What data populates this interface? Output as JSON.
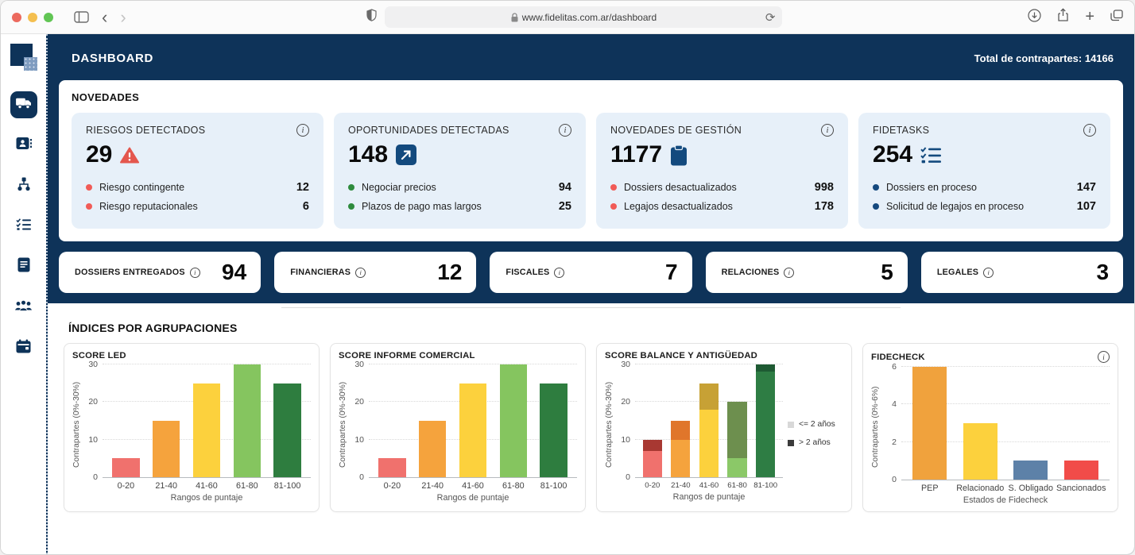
{
  "browser": {
    "url": "www.fidelitas.com.ar/dashboard"
  },
  "header": {
    "title": "DASHBOARD",
    "total_label": "Total de contrapartes: 14166"
  },
  "sidebar": {
    "items": [
      {
        "icon": "truck-icon",
        "active": true
      },
      {
        "icon": "contact-card-icon",
        "active": false
      },
      {
        "icon": "hierarchy-icon",
        "active": false
      },
      {
        "icon": "checklist-icon",
        "active": false
      },
      {
        "icon": "document-icon",
        "active": false
      },
      {
        "icon": "people-icon",
        "active": false
      },
      {
        "icon": "calendar-icon",
        "active": false
      }
    ]
  },
  "novedades": {
    "title": "NOVEDADES",
    "cards": [
      {
        "title": "RIESGOS DETECTADOS",
        "value": "29",
        "icon": "warning-triangle-icon",
        "items": [
          {
            "dot": "#f15b57",
            "label": "Riesgo contingente",
            "value": "12"
          },
          {
            "dot": "#f15b57",
            "label": "Riesgo reputacionales",
            "value": "6"
          }
        ]
      },
      {
        "title": "OPORTUNIDADES DETECTADAS",
        "value": "148",
        "icon": "trend-up-icon",
        "items": [
          {
            "dot": "#2e8b3d",
            "label": "Negociar precios",
            "value": "94"
          },
          {
            "dot": "#2e8b3d",
            "label": "Plazos de pago mas largos",
            "value": "25"
          }
        ]
      },
      {
        "title": "NOVEDADES DE GESTIÓN",
        "value": "1177",
        "icon": "clipboard-icon",
        "items": [
          {
            "dot": "#f15b57",
            "label": "Dossiers desactualizados",
            "value": "998"
          },
          {
            "dot": "#f15b57",
            "label": "Legajos desactualizados",
            "value": "178"
          }
        ]
      },
      {
        "title": "FIDETASKS",
        "value": "254",
        "icon": "tasks-icon",
        "items": [
          {
            "dot": "#15497e",
            "label": "Dossiers en proceso",
            "value": "147"
          },
          {
            "dot": "#15497e",
            "label": "Solicitud de legajos en proceso",
            "value": "107"
          }
        ]
      }
    ]
  },
  "chips": [
    {
      "label": "DOSSIERS ENTREGADOS",
      "value": "94"
    },
    {
      "label": "FINANCIERAS",
      "value": "12"
    },
    {
      "label": "FISCALES",
      "value": "7"
    },
    {
      "label": "RELACIONES",
      "value": "5"
    },
    {
      "label": "LEGALES",
      "value": "3"
    }
  ],
  "indices": {
    "title": "ÍNDICES POR AGRUPACIONES"
  },
  "colors": {
    "navy": "#0e3359",
    "icon_navy": "#134a7e",
    "card_bg": "#e7f0f9",
    "warning_red": "#e4574e"
  },
  "chart_data": [
    {
      "type": "bar",
      "title": "SCORE LED",
      "categories": [
        "0-20",
        "21-40",
        "41-60",
        "61-80",
        "81-100"
      ],
      "values": [
        5,
        15,
        25,
        30,
        25
      ],
      "colors": [
        "#f0716d",
        "#f5a33d",
        "#fcd13d",
        "#85c55f",
        "#2e7d3f"
      ],
      "xlabel": "Rangos de puntaje",
      "ylabel": "Contrapartes (0%-30%)",
      "ylim": [
        0,
        30
      ],
      "yticks": [
        0,
        10,
        20,
        30
      ],
      "grid": true,
      "info_icon": false
    },
    {
      "type": "bar",
      "title": "SCORE INFORME COMERCIAL",
      "categories": [
        "0-20",
        "21-40",
        "41-60",
        "61-80",
        "81-100"
      ],
      "values": [
        5,
        15,
        25,
        30,
        25
      ],
      "colors": [
        "#f0716d",
        "#f5a33d",
        "#fcd13d",
        "#85c55f",
        "#2e7d3f"
      ],
      "xlabel": "Rangos de puntaje",
      "ylabel": "Contrapartes (0%-30%)",
      "ylim": [
        0,
        30
      ],
      "yticks": [
        0,
        10,
        20,
        30
      ],
      "grid": true,
      "info_icon": false
    },
    {
      "type": "stacked-bar",
      "title": "SCORE BALANCE Y ANTIGÜEDAD",
      "categories": [
        "0-20",
        "21-40",
        "41-60",
        "61-80",
        "81-100"
      ],
      "series": [
        {
          "name": "<= 2 años",
          "values": [
            7,
            10,
            18,
            5,
            28
          ],
          "colors": [
            "#f0716d",
            "#f5a33d",
            "#fcd13d",
            "#8bc868",
            "#2e7d44"
          ]
        },
        {
          "name": "> 2 años",
          "values": [
            3,
            5,
            7,
            15,
            2
          ],
          "colors": [
            "#a83832",
            "#e0762b",
            "#c7a135",
            "#6d8f4e",
            "#1e5a33"
          ]
        }
      ],
      "legend": [
        {
          "label": "<= 2 años",
          "color": "#d8d8d8"
        },
        {
          "label": "> 2 años",
          "color": "#3b3b3b"
        }
      ],
      "legend_position": "right",
      "xlabel": "Rangos de puntaje",
      "ylabel": "Contrapartes (0%-30%)",
      "ylim": [
        0,
        30
      ],
      "yticks": [
        0,
        10,
        20,
        30
      ],
      "grid": true,
      "info_icon": false
    },
    {
      "type": "bar",
      "title": "FIDECHECK",
      "categories": [
        "PEP",
        "Relacionado",
        "S. Obligado",
        "Sancionados"
      ],
      "values": [
        6,
        3,
        1,
        1
      ],
      "colors": [
        "#f0a23d",
        "#fcd13d",
        "#5d81a8",
        "#f14c49"
      ],
      "xlabel": "Estados de Fidecheck",
      "ylabel": "Contrapartes (0%-6%)",
      "ylim": [
        0,
        6
      ],
      "yticks": [
        0,
        2,
        4,
        6
      ],
      "grid": true,
      "info_icon": true
    }
  ]
}
